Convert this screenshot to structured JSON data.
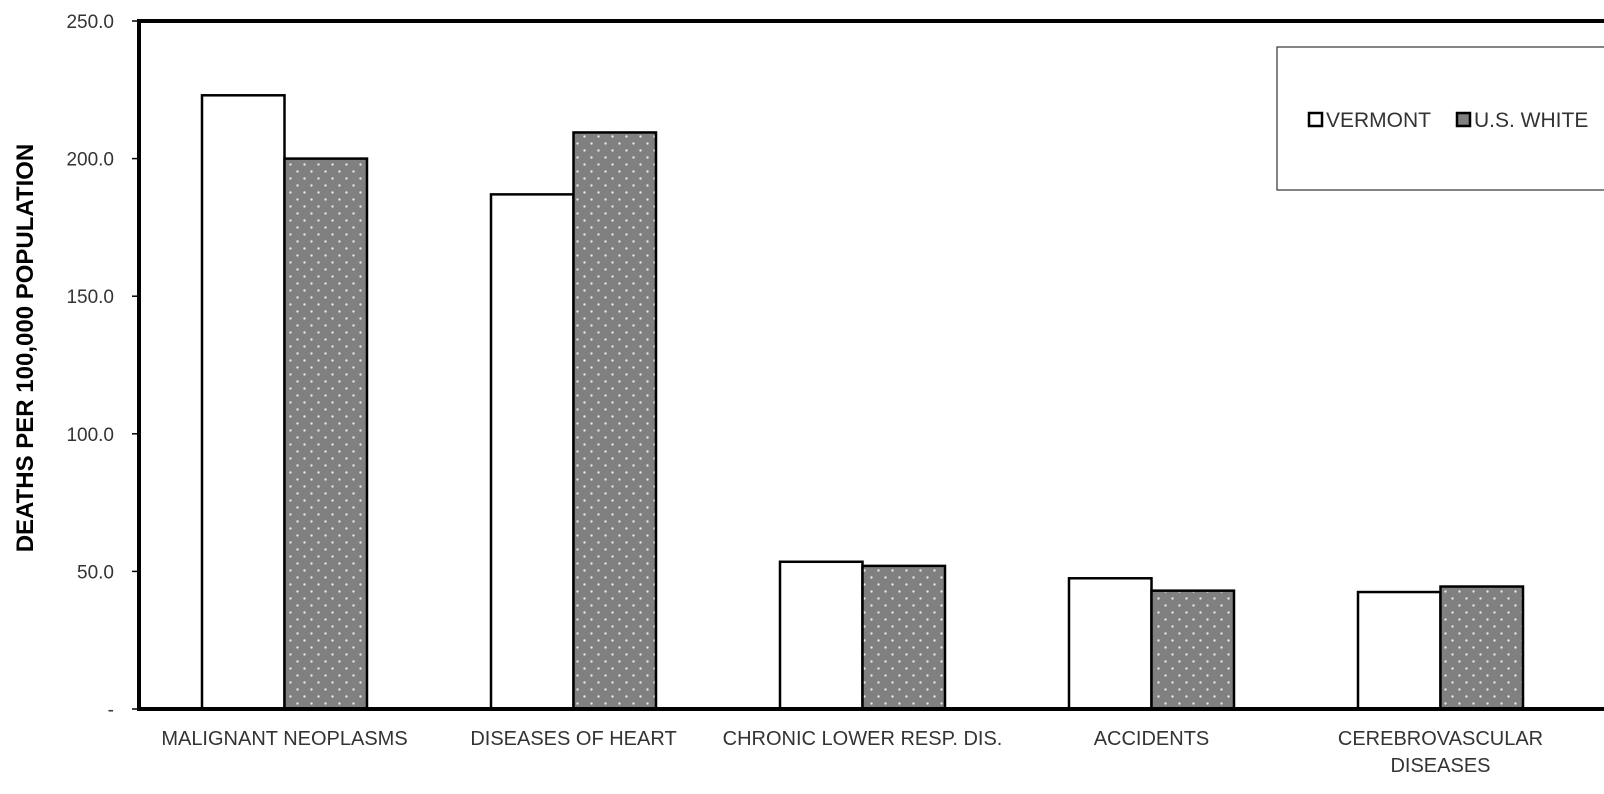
{
  "chart_data": {
    "type": "bar",
    "title": "",
    "xlabel": "",
    "ylabel": "DEATHS PER 100,000 POPULATION",
    "ylim": [
      0,
      250
    ],
    "yticks": [
      {
        "value": 0,
        "label": "-"
      },
      {
        "value": 50,
        "label": "50.0"
      },
      {
        "value": 100,
        "label": "100.0"
      },
      {
        "value": 150,
        "label": "150.0"
      },
      {
        "value": 200,
        "label": "200.0"
      },
      {
        "value": 250,
        "label": "250.0"
      }
    ],
    "categories": [
      [
        "MALIGNANT NEOPLASMS"
      ],
      [
        "DISEASES OF HEART"
      ],
      [
        "CHRONIC LOWER RESP. DIS."
      ],
      [
        "ACCIDENTS"
      ],
      [
        "CEREBROVASCULAR",
        "DISEASES"
      ]
    ],
    "series": [
      {
        "name": "VERMONT",
        "values": [
          223.0,
          187.0,
          53.5,
          47.5,
          42.5
        ],
        "fill": "#ffffff",
        "pattern": "none"
      },
      {
        "name": "U.S. WHITE",
        "values": [
          200.0,
          209.5,
          52.0,
          43.0,
          44.5
        ],
        "fill": "#808080",
        "pattern": "dots"
      }
    ],
    "grid": false,
    "legend": "top-right"
  }
}
